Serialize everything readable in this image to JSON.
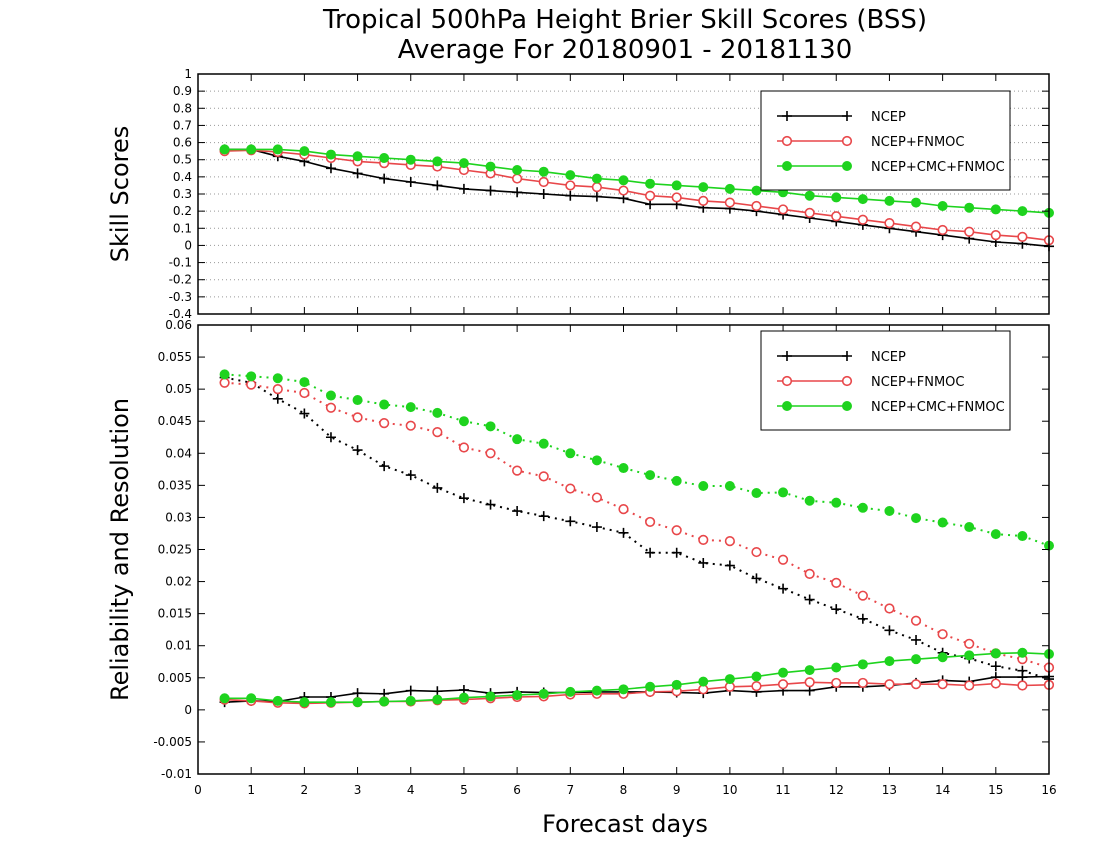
{
  "title_line1": "Tropical 500hPa Height Brier Skill Scores (BSS)",
  "title_line2": "Average For 20180901 - 20181130",
  "xlabel": "Forecast days",
  "colors": {
    "ncep": "#000000",
    "fnmoc": "#e8474a",
    "cmc": "#1ed31e"
  },
  "chart_data": [
    {
      "type": "line",
      "ylabel": "Skill Scores",
      "xlim": [
        0,
        16
      ],
      "ylim": [
        -0.4,
        1
      ],
      "x_ticks": [
        "0",
        "1",
        "2",
        "3",
        "4",
        "5",
        "6",
        "7",
        "8",
        "9",
        "10",
        "11",
        "12",
        "13",
        "14",
        "15",
        "16"
      ],
      "y_ticks": [
        "-0.4",
        "-0.3",
        "-0.2",
        "-0.1",
        "0",
        "0.1",
        "0.2",
        "0.3",
        "0.4",
        "0.5",
        "0.6",
        "0.7",
        "0.8",
        "0.9",
        "1"
      ],
      "grid": true,
      "legend_position": "top-right",
      "x": [
        0.5,
        1,
        1.5,
        2,
        2.5,
        3,
        3.5,
        4,
        4.5,
        5,
        5.5,
        6,
        6.5,
        7,
        7.5,
        8,
        8.5,
        9,
        9.5,
        10,
        10.5,
        11,
        11.5,
        12,
        12.5,
        13,
        13.5,
        14,
        14.5,
        15,
        15.5,
        16
      ],
      "series": [
        {
          "name": "NCEP",
          "marker": "plus",
          "color": "#000000",
          "values": [
            0.56,
            0.56,
            0.52,
            0.49,
            0.45,
            0.42,
            0.39,
            0.37,
            0.35,
            0.33,
            0.32,
            0.31,
            0.3,
            0.29,
            0.285,
            0.275,
            0.24,
            0.24,
            0.22,
            0.215,
            0.2,
            0.18,
            0.16,
            0.14,
            0.12,
            0.1,
            0.08,
            0.06,
            0.04,
            0.02,
            0.01,
            -0.005
          ]
        },
        {
          "name": "NCEP+FNMOC",
          "marker": "open-circle",
          "color": "#e8474a",
          "values": [
            0.55,
            0.555,
            0.545,
            0.53,
            0.51,
            0.49,
            0.48,
            0.47,
            0.46,
            0.44,
            0.42,
            0.39,
            0.37,
            0.35,
            0.34,
            0.32,
            0.29,
            0.28,
            0.26,
            0.25,
            0.23,
            0.21,
            0.19,
            0.17,
            0.15,
            0.13,
            0.11,
            0.09,
            0.08,
            0.06,
            0.05,
            0.03
          ]
        },
        {
          "name": "NCEP+CMC+FNMOC",
          "marker": "filled-circle",
          "color": "#1ed31e",
          "values": [
            0.56,
            0.56,
            0.56,
            0.55,
            0.53,
            0.52,
            0.51,
            0.5,
            0.49,
            0.48,
            0.46,
            0.44,
            0.43,
            0.41,
            0.39,
            0.38,
            0.36,
            0.35,
            0.34,
            0.33,
            0.32,
            0.31,
            0.29,
            0.28,
            0.27,
            0.26,
            0.25,
            0.23,
            0.22,
            0.21,
            0.2,
            0.19
          ]
        }
      ]
    },
    {
      "type": "line",
      "ylabel": "Reliability and Resolution",
      "xlim": [
        0,
        16
      ],
      "ylim": [
        -0.01,
        0.06
      ],
      "x_ticks": [
        "0",
        "1",
        "2",
        "3",
        "4",
        "5",
        "6",
        "7",
        "8",
        "9",
        "10",
        "11",
        "12",
        "13",
        "14",
        "15",
        "16"
      ],
      "y_ticks": [
        "-0.01",
        "-0.005",
        "0",
        "0.005",
        "0.01",
        "0.015",
        "0.02",
        "0.025",
        "0.03",
        "0.035",
        "0.04",
        "0.045",
        "0.05",
        "0.055",
        "0.06"
      ],
      "grid": false,
      "legend_position": "top-right",
      "x": [
        0.5,
        1,
        1.5,
        2,
        2.5,
        3,
        3.5,
        4,
        4.5,
        5,
        5.5,
        6,
        6.5,
        7,
        7.5,
        8,
        8.5,
        9,
        9.5,
        10,
        10.5,
        11,
        11.5,
        12,
        12.5,
        13,
        13.5,
        14,
        14.5,
        15,
        15.5,
        16
      ],
      "series": [
        {
          "name": "NCEP",
          "marker": "plus",
          "color": "#000000",
          "line_style": "dotted",
          "values": [
            0.0518,
            0.051,
            0.0485,
            0.0462,
            0.0425,
            0.0405,
            0.038,
            0.0366,
            0.0346,
            0.033,
            0.032,
            0.031,
            0.0302,
            0.0294,
            0.0285,
            0.0276,
            0.0245,
            0.0245,
            0.0229,
            0.0225,
            0.0205,
            0.0189,
            0.0172,
            0.0157,
            0.0142,
            0.0124,
            0.0109,
            0.0089,
            0.008,
            0.0068,
            0.0061,
            0.0048
          ]
        },
        {
          "name": "NCEP+FNMOC",
          "marker": "open-circle",
          "color": "#e8474a",
          "line_style": "dotted",
          "values": [
            0.051,
            0.0507,
            0.05,
            0.0494,
            0.0471,
            0.0456,
            0.0447,
            0.0443,
            0.0433,
            0.0409,
            0.04,
            0.0373,
            0.0364,
            0.0345,
            0.0331,
            0.0313,
            0.0293,
            0.028,
            0.0265,
            0.0263,
            0.0246,
            0.0234,
            0.0212,
            0.0198,
            0.0178,
            0.0158,
            0.0139,
            0.0118,
            0.0103,
            0.0088,
            0.0079,
            0.0066
          ]
        },
        {
          "name": "NCEP+CMC+FNMOC",
          "marker": "filled-circle",
          "color": "#1ed31e",
          "line_style": "dotted",
          "values": [
            0.0523,
            0.052,
            0.0517,
            0.0511,
            0.049,
            0.0483,
            0.0476,
            0.0472,
            0.0463,
            0.045,
            0.0442,
            0.0422,
            0.0415,
            0.04,
            0.0389,
            0.0377,
            0.0366,
            0.0357,
            0.0349,
            0.0349,
            0.0338,
            0.0339,
            0.0326,
            0.0323,
            0.0315,
            0.031,
            0.0299,
            0.0292,
            0.0285,
            0.0274,
            0.0271,
            0.0256
          ]
        },
        {
          "name": "",
          "marker": "plus",
          "color": "#000000",
          "line_style": "solid",
          "values": [
            0.0012,
            0.0014,
            0.0013,
            0.002,
            0.002,
            0.0026,
            0.0025,
            0.003,
            0.0029,
            0.0031,
            0.0026,
            0.0028,
            0.0027,
            0.0027,
            0.0028,
            0.0028,
            0.0028,
            0.0027,
            0.0026,
            0.003,
            0.0028,
            0.003,
            0.003,
            0.0036,
            0.0036,
            0.0038,
            0.0042,
            0.0046,
            0.0044,
            0.0051,
            0.0051,
            0.0052
          ]
        },
        {
          "name": "",
          "marker": "open-circle",
          "color": "#e8474a",
          "line_style": "solid",
          "values": [
            0.0016,
            0.0014,
            0.0011,
            0.001,
            0.0011,
            0.0012,
            0.0013,
            0.0013,
            0.0015,
            0.0016,
            0.0018,
            0.002,
            0.0021,
            0.0024,
            0.0025,
            0.0025,
            0.0028,
            0.0029,
            0.0032,
            0.0036,
            0.0037,
            0.004,
            0.0043,
            0.0042,
            0.0042,
            0.004,
            0.004,
            0.004,
            0.0038,
            0.0041,
            0.0038,
            0.0039
          ]
        },
        {
          "name": "",
          "marker": "filled-circle",
          "color": "#1ed31e",
          "line_style": "solid",
          "values": [
            0.0018,
            0.0018,
            0.0014,
            0.0012,
            0.0012,
            0.0012,
            0.0013,
            0.0014,
            0.0016,
            0.0019,
            0.0021,
            0.0023,
            0.0025,
            0.0028,
            0.003,
            0.0032,
            0.0036,
            0.0039,
            0.0044,
            0.0048,
            0.0052,
            0.0058,
            0.0062,
            0.0066,
            0.0071,
            0.0076,
            0.0079,
            0.0082,
            0.0085,
            0.0088,
            0.0089,
            0.0087
          ]
        }
      ]
    }
  ]
}
